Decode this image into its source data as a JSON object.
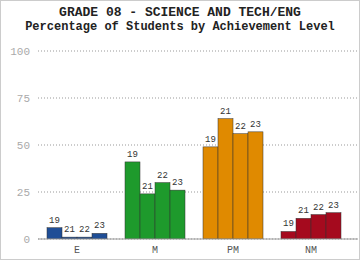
{
  "chart_data": {
    "type": "bar",
    "title": "GRADE 08 - SCIENCE AND TECH/ENG",
    "subtitle": "Percentage of Students by Achievement Level",
    "categories": [
      "E",
      "M",
      "PM",
      "NM"
    ],
    "colors": [
      "#1f4e96",
      "#1e9a2c",
      "#e08a00",
      "#a50a1e"
    ],
    "series": [
      {
        "name": "19",
        "values": [
          6,
          41,
          49,
          4
        ]
      },
      {
        "name": "21",
        "values": [
          1,
          24,
          64,
          11
        ]
      },
      {
        "name": "22",
        "values": [
          1,
          30,
          56,
          13
        ]
      },
      {
        "name": "23",
        "values": [
          3,
          26,
          57,
          14
        ]
      }
    ],
    "ylim": [
      0,
      100
    ],
    "yticks": [
      0,
      25,
      50,
      75,
      100
    ],
    "grid": true
  }
}
